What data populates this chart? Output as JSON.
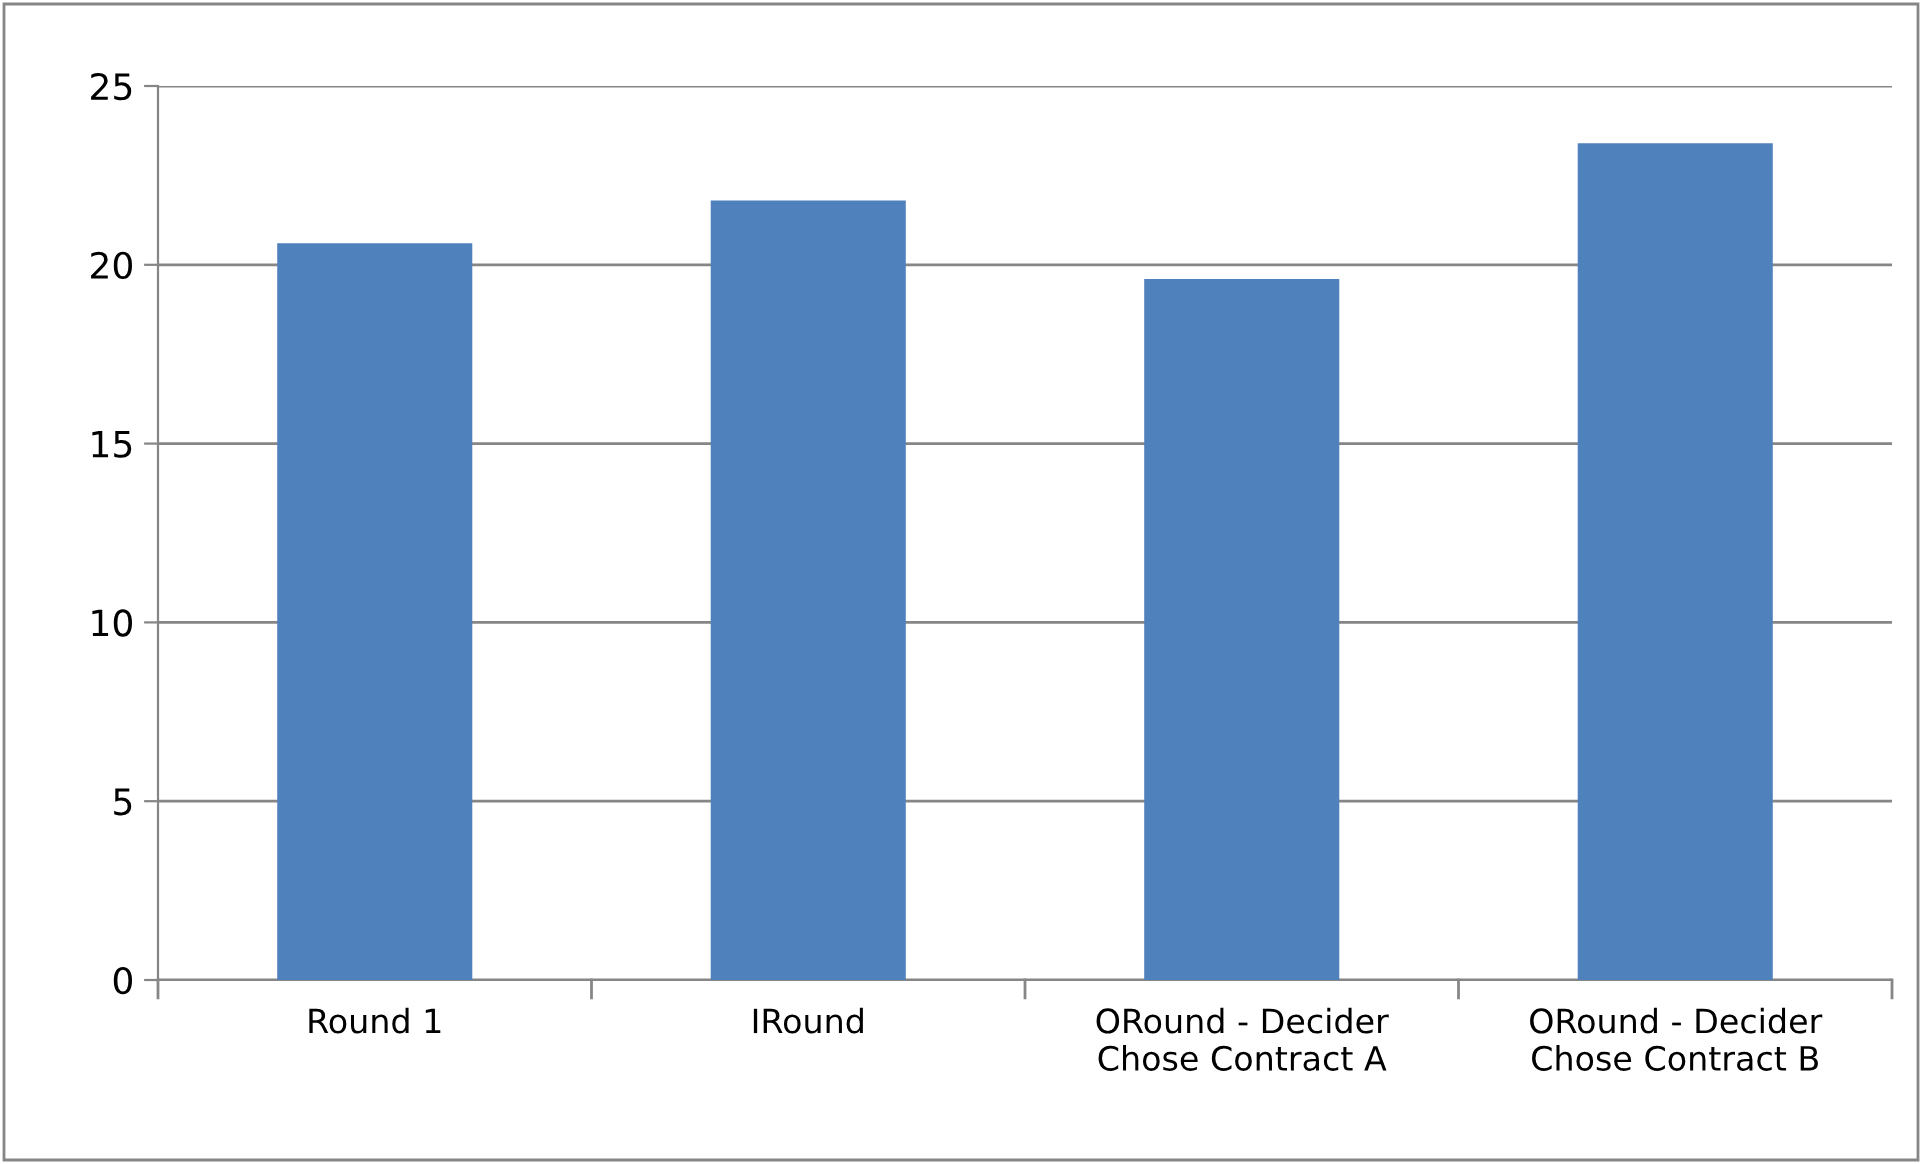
{
  "chart_data": {
    "type": "bar",
    "categories": [
      "Round 1",
      "IRound",
      "ORound - Decider\nChose Contract A",
      "ORound - Decider\nChose Contract B"
    ],
    "values": [
      20.6,
      21.8,
      19.6,
      23.4
    ],
    "color": "#4f81bd",
    "ylim": [
      0,
      25
    ],
    "yticks": [
      0,
      5,
      10,
      15,
      20,
      25
    ],
    "grid": "y",
    "legend": false
  }
}
